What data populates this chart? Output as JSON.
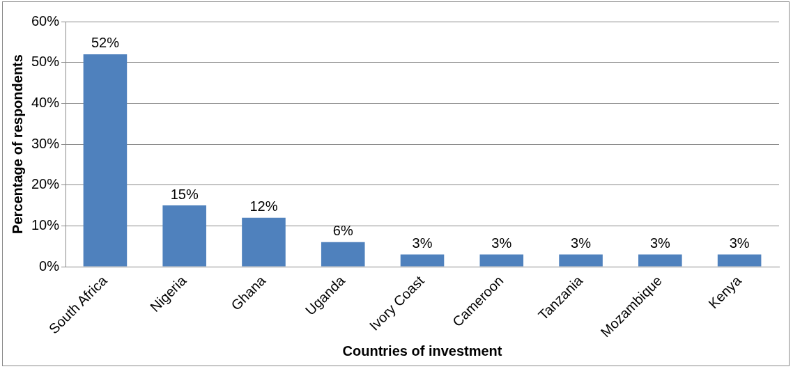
{
  "chart_data": {
    "type": "bar",
    "xlabel": "Countries of investment",
    "ylabel": "Percentage of respondents",
    "categories": [
      "South Africa",
      "Nigeria",
      "Ghana",
      "Uganda",
      "Ivory Coast",
      "Cameroon",
      "Tanzania",
      "Mozambique",
      "Kenya"
    ],
    "values": [
      52,
      15,
      12,
      6,
      3,
      3,
      3,
      3,
      3
    ],
    "value_labels": [
      "52%",
      "15%",
      "12%",
      "6%",
      "3%",
      "3%",
      "3%",
      "3%",
      "3%"
    ],
    "color": "#4f81bd",
    "ylim": [
      0,
      60
    ],
    "yticks": [
      {
        "value": 0,
        "label": "0%"
      },
      {
        "value": 10,
        "label": "10%"
      },
      {
        "value": 20,
        "label": "20%"
      },
      {
        "value": 30,
        "label": "30%"
      },
      {
        "value": 40,
        "label": "40%"
      },
      {
        "value": 50,
        "label": "50%"
      },
      {
        "value": 60,
        "label": "60%"
      }
    ],
    "grid": "y",
    "legend": false
  }
}
